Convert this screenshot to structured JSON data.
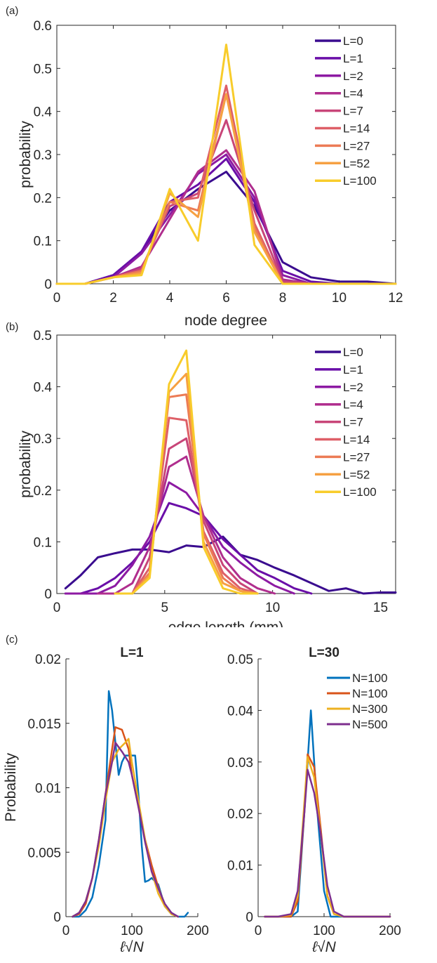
{
  "chart_data": [
    {
      "panel": "(a)",
      "type": "line",
      "xlabel": "node degree",
      "ylabel": "probability",
      "xlim": [
        0,
        12
      ],
      "ylim": [
        0,
        0.6
      ],
      "xticks": [
        0,
        2,
        4,
        6,
        8,
        10,
        12
      ],
      "yticks": [
        0,
        0.1,
        0.2,
        0.3,
        0.4,
        0.5,
        0.6
      ],
      "xtick_labels": [
        "0",
        "2",
        "4",
        "6",
        "8",
        "10",
        "12"
      ],
      "ytick_labels": [
        "0",
        "0.1",
        "0.2",
        "0.3",
        "0.4",
        "0.5",
        "0.6"
      ],
      "legend_position": "top-right",
      "x": [
        0,
        1,
        2,
        3,
        4,
        5,
        6,
        7,
        8,
        9,
        10,
        11,
        12
      ],
      "series": [
        {
          "name": "L=0",
          "color": "#3a0c8f",
          "values": [
            0,
            0,
            0.02,
            0.075,
            0.17,
            0.22,
            0.26,
            0.18,
            0.05,
            0.015,
            0.005,
            0.005,
            0
          ]
        },
        {
          "name": "L=1",
          "color": "#6a0ea8",
          "values": [
            0,
            0,
            0.02,
            0.075,
            0.19,
            0.23,
            0.29,
            0.19,
            0.03,
            0.005,
            0,
            0,
            0
          ]
        },
        {
          "name": "L=2",
          "color": "#8d1aa3",
          "values": [
            0,
            0,
            0.015,
            0.07,
            0.16,
            0.255,
            0.3,
            0.2,
            0.02,
            0,
            0,
            0,
            0
          ]
        },
        {
          "name": "L=4",
          "color": "#b02e8e",
          "values": [
            0,
            0,
            0.015,
            0.04,
            0.15,
            0.26,
            0.31,
            0.215,
            0.01,
            0,
            0,
            0,
            0
          ]
        },
        {
          "name": "L=7",
          "color": "#c84578",
          "values": [
            0,
            0,
            0.015,
            0.035,
            0.18,
            0.21,
            0.38,
            0.17,
            0.005,
            0,
            0,
            0,
            0
          ]
        },
        {
          "name": "L=14",
          "color": "#de5f67",
          "values": [
            0,
            0,
            0.015,
            0.03,
            0.19,
            0.2,
            0.46,
            0.14,
            0,
            0,
            0,
            0,
            0
          ]
        },
        {
          "name": "L=27",
          "color": "#ec7b55",
          "values": [
            0,
            0,
            0.015,
            0.03,
            0.19,
            0.17,
            0.44,
            0.13,
            0,
            0,
            0,
            0,
            0
          ]
        },
        {
          "name": "L=52",
          "color": "#f6a042",
          "values": [
            0,
            0,
            0.015,
            0.025,
            0.21,
            0.155,
            0.44,
            0.12,
            0,
            0,
            0,
            0,
            0
          ]
        },
        {
          "name": "L=100",
          "color": "#f8cc2b",
          "values": [
            0,
            0,
            0.015,
            0.02,
            0.22,
            0.1,
            0.555,
            0.09,
            0,
            0,
            0,
            0,
            0
          ]
        }
      ]
    },
    {
      "panel": "(b)",
      "type": "line",
      "xlabel": "edge length (mm)",
      "ylabel": "probability",
      "xlim": [
        0,
        15.7
      ],
      "ylim": [
        0,
        0.5
      ],
      "xticks": [
        0,
        5,
        10,
        15
      ],
      "yticks": [
        0,
        0.1,
        0.2,
        0.3,
        0.4,
        0.5
      ],
      "xtick_labels": [
        "0",
        "5",
        "10",
        "15"
      ],
      "ytick_labels": [
        "0",
        "0.1",
        "0.2",
        "0.3",
        "0.4",
        "0.5"
      ],
      "legend_position": "top-right",
      "series": [
        {
          "name": "L=0",
          "color": "#3a0c8f",
          "x": [
            0.4,
            1.1,
            1.9,
            2.7,
            3.5,
            4.3,
            5.2,
            6.0,
            6.8,
            7.7,
            8.5,
            9.3,
            10.1,
            11.0,
            11.8,
            12.6,
            13.4,
            14.2,
            15.0,
            15.7
          ],
          "y": [
            0.01,
            0.035,
            0.07,
            0.078,
            0.085,
            0.085,
            0.08,
            0.093,
            0.09,
            0.11,
            0.075,
            0.065,
            0.05,
            0.035,
            0.02,
            0.005,
            0.01,
            0,
            0.002,
            0.002
          ]
        },
        {
          "name": "L=1",
          "color": "#6a0ea8",
          "x": [
            0.4,
            1.1,
            1.9,
            2.7,
            3.5,
            4.3,
            5.2,
            6.0,
            6.8,
            7.7,
            8.5,
            9.3,
            10.1,
            11.0,
            11.8
          ],
          "y": [
            0,
            0,
            0.01,
            0.03,
            0.06,
            0.1,
            0.175,
            0.165,
            0.15,
            0.105,
            0.075,
            0.045,
            0.03,
            0.01,
            0
          ]
        },
        {
          "name": "L=2",
          "color": "#8d1aa3",
          "x": [
            0.4,
            1.1,
            1.9,
            2.7,
            3.5,
            4.3,
            5.2,
            6.0,
            6.8,
            7.7,
            8.5,
            9.3,
            10.1,
            11.0
          ],
          "y": [
            0,
            0,
            0,
            0.015,
            0.055,
            0.11,
            0.215,
            0.195,
            0.15,
            0.09,
            0.06,
            0.035,
            0.015,
            0
          ]
        },
        {
          "name": "L=4",
          "color": "#b02e8e",
          "x": [
            1.9,
            2.7,
            3.5,
            4.3,
            5.2,
            6.0,
            6.8,
            7.7,
            8.5,
            9.3,
            10.1
          ],
          "y": [
            0,
            0,
            0.02,
            0.09,
            0.245,
            0.265,
            0.15,
            0.07,
            0.03,
            0.01,
            0
          ]
        },
        {
          "name": "L=7",
          "color": "#c84578",
          "x": [
            2.7,
            3.5,
            4.3,
            5.2,
            6.0,
            6.8,
            7.7,
            8.5,
            9.3
          ],
          "y": [
            0,
            0,
            0.07,
            0.28,
            0.3,
            0.14,
            0.055,
            0.02,
            0
          ]
        },
        {
          "name": "L=14",
          "color": "#de5f67",
          "x": [
            2.7,
            3.5,
            4.3,
            5.2,
            6.0,
            6.8,
            7.7,
            8.5,
            9.3
          ],
          "y": [
            0,
            0,
            0.05,
            0.34,
            0.335,
            0.12,
            0.04,
            0.01,
            0
          ]
        },
        {
          "name": "L=27",
          "color": "#ec7b55",
          "x": [
            2.7,
            3.5,
            4.3,
            5.2,
            6.0,
            6.8,
            7.7,
            8.5,
            9.3
          ],
          "y": [
            0,
            0,
            0.04,
            0.38,
            0.385,
            0.115,
            0.03,
            0.005,
            0
          ]
        },
        {
          "name": "L=52",
          "color": "#f6a042",
          "x": [
            2.7,
            3.5,
            4.3,
            5.2,
            6.0,
            6.8,
            7.7,
            8.5,
            9.3
          ],
          "y": [
            0,
            0,
            0.035,
            0.39,
            0.425,
            0.1,
            0.02,
            0.005,
            0
          ]
        },
        {
          "name": "L=100",
          "color": "#f8cc2b",
          "x": [
            2.7,
            3.5,
            4.3,
            5.2,
            6.0,
            6.8,
            7.7,
            8.5,
            9.3
          ],
          "y": [
            0,
            0,
            0.03,
            0.405,
            0.47,
            0.09,
            0.01,
            0,
            0
          ]
        }
      ]
    },
    {
      "panel": "(c)",
      "type": "line",
      "title": "L=1",
      "xlabel": "ℓ√N",
      "ylabel": "Probability",
      "xlim": [
        0,
        200
      ],
      "ylim": [
        0,
        0.02
      ],
      "xticks": [
        0,
        100,
        200
      ],
      "yticks": [
        0,
        0.005,
        0.01,
        0.015,
        0.02
      ],
      "xtick_labels": [
        "0",
        "100",
        "200"
      ],
      "ytick_labels": [
        "0",
        "0.005",
        "0.01",
        "0.015",
        "0.02"
      ],
      "series": [
        {
          "name": "N=100",
          "color": "#0072bd",
          "x": [
            10,
            20,
            30,
            40,
            50,
            60,
            65,
            70,
            75,
            80,
            85,
            90,
            95,
            100,
            105,
            110,
            115,
            120,
            125,
            130,
            140,
            150,
            160,
            170,
            180,
            185
          ],
          "y": [
            0,
            0,
            0.0005,
            0.0015,
            0.004,
            0.0075,
            0.0175,
            0.016,
            0.0135,
            0.011,
            0.012,
            0.0125,
            0.0125,
            0.0125,
            0.0125,
            0.0095,
            0.0055,
            0.0027,
            0.0028,
            0.003,
            0.0025,
            0.0008,
            0.0002,
            0,
            0,
            0.0003
          ]
        },
        {
          "name": "N=100",
          "color": "#d95319",
          "x": [
            10,
            20,
            30,
            40,
            50,
            60,
            70,
            75,
            85,
            95,
            100,
            110,
            120,
            130,
            140,
            150,
            160,
            170
          ],
          "y": [
            0,
            0.0002,
            0.001,
            0.003,
            0.006,
            0.0095,
            0.013,
            0.0147,
            0.0145,
            0.013,
            0.011,
            0.0085,
            0.006,
            0.004,
            0.0023,
            0.0009,
            0.0002,
            0
          ]
        },
        {
          "name": "N=300",
          "color": "#edb120",
          "x": [
            10,
            20,
            30,
            40,
            50,
            60,
            70,
            80,
            90,
            95,
            100,
            110,
            120,
            130,
            140,
            150,
            160,
            170
          ],
          "y": [
            0,
            0.0003,
            0.0012,
            0.003,
            0.0055,
            0.009,
            0.012,
            0.013,
            0.0135,
            0.0138,
            0.012,
            0.009,
            0.006,
            0.0035,
            0.0018,
            0.0008,
            0.0002,
            0
          ]
        },
        {
          "name": "N=500",
          "color": "#7e2f8e",
          "x": [
            10,
            20,
            30,
            40,
            50,
            60,
            70,
            75,
            85,
            95,
            100,
            110,
            120,
            130,
            140,
            150,
            160,
            170
          ],
          "y": [
            0,
            0.0003,
            0.0012,
            0.003,
            0.006,
            0.0095,
            0.012,
            0.0135,
            0.0128,
            0.012,
            0.011,
            0.0085,
            0.0058,
            0.0035,
            0.0022,
            0.001,
            0.0003,
            0
          ]
        }
      ]
    },
    {
      "panel": "(c)",
      "type": "line",
      "title": "L=30",
      "xlabel": "ℓ√N",
      "ylabel": "",
      "xlim": [
        0,
        200
      ],
      "ylim": [
        0,
        0.05
      ],
      "xticks": [
        0,
        100,
        200
      ],
      "yticks": [
        0,
        0.01,
        0.02,
        0.03,
        0.04,
        0.05
      ],
      "xtick_labels": [
        "0",
        "100",
        "200"
      ],
      "ytick_labels": [
        "0",
        "0.01",
        "0.02",
        "0.03",
        "0.04",
        "0.05"
      ],
      "legend_position": "top-right",
      "series": [
        {
          "name": "N=100",
          "color": "#0072bd",
          "x": [
            10,
            30,
            50,
            60,
            70,
            80,
            90,
            100,
            110,
            120,
            140,
            160,
            180,
            200
          ],
          "y": [
            0,
            0,
            0,
            0.001,
            0.02,
            0.04,
            0.02,
            0.005,
            0,
            0,
            0,
            0,
            0,
            0
          ]
        },
        {
          "name": "N=100",
          "color": "#d95319",
          "x": [
            10,
            30,
            50,
            60,
            70,
            75,
            85,
            95,
            105,
            115,
            130,
            160,
            200
          ],
          "y": [
            0,
            0,
            0,
            0.003,
            0.02,
            0.0315,
            0.029,
            0.017,
            0.004,
            0.0005,
            0,
            0,
            0
          ]
        },
        {
          "name": "N=300",
          "color": "#edb120",
          "x": [
            10,
            30,
            50,
            60,
            70,
            75,
            85,
            95,
            105,
            115,
            130,
            160,
            200
          ],
          "y": [
            0,
            0,
            0.0003,
            0.004,
            0.022,
            0.031,
            0.027,
            0.016,
            0.004,
            0.0005,
            0,
            0,
            0
          ]
        },
        {
          "name": "N=500",
          "color": "#7e2f8e",
          "x": [
            10,
            30,
            50,
            60,
            70,
            75,
            85,
            95,
            105,
            115,
            130,
            160,
            200
          ],
          "y": [
            0,
            0,
            0.0005,
            0.005,
            0.02,
            0.0285,
            0.024,
            0.016,
            0.006,
            0.001,
            0,
            0,
            0
          ]
        }
      ]
    }
  ]
}
